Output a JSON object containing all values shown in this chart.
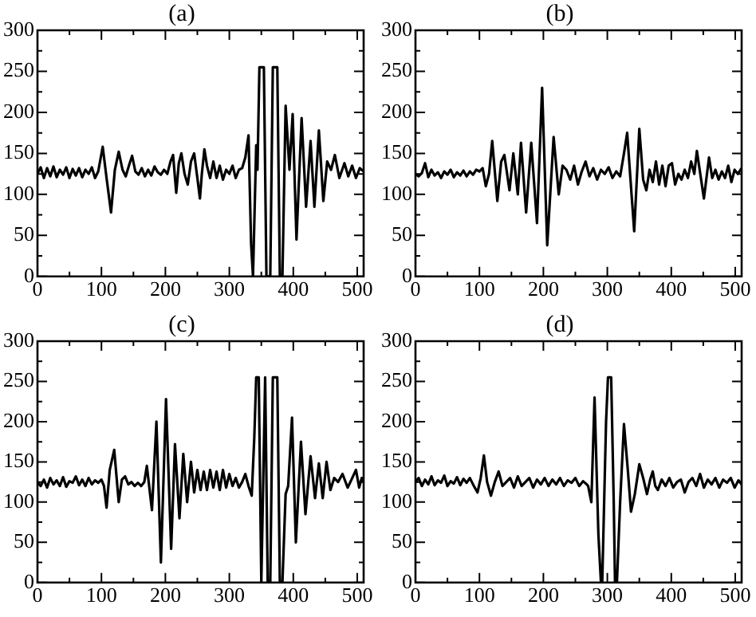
{
  "chart_data": [
    {
      "type": "line",
      "title": "(a)",
      "color": "#000000",
      "marker": "none",
      "xlim": [
        0,
        510
      ],
      "ylim": [
        0,
        300
      ],
      "xticks": [
        0,
        {
          "value": 50,
          "label": null
        },
        100,
        {
          "value": 150,
          "label": null
        },
        200,
        {
          "value": 250,
          "label": null
        },
        300,
        {
          "value": 350,
          "label": null
        },
        400,
        {
          "value": 450,
          "label": null
        },
        500
      ],
      "yticks": [
        0,
        {
          "value": 25,
          "label": null
        },
        50,
        {
          "value": 75,
          "label": null
        },
        100,
        {
          "value": 125,
          "label": null
        },
        150,
        {
          "value": 175,
          "label": null
        },
        200,
        {
          "value": 225,
          "label": null
        },
        250,
        {
          "value": 275,
          "label": null
        },
        300
      ],
      "x": [
        0,
        5,
        10,
        15,
        20,
        25,
        30,
        35,
        40,
        45,
        50,
        55,
        60,
        65,
        70,
        75,
        80,
        85,
        90,
        95,
        102,
        108,
        115,
        121,
        127,
        133,
        138,
        143,
        148,
        153,
        158,
        163,
        168,
        173,
        178,
        183,
        188,
        193,
        198,
        203,
        208,
        212,
        217,
        221,
        225,
        230,
        235,
        240,
        245,
        250,
        254,
        257,
        261,
        265,
        270,
        275,
        280,
        285,
        290,
        295,
        300,
        305,
        310,
        315,
        320,
        325,
        330,
        334,
        337,
        342,
        344,
        347,
        354,
        358,
        364,
        368,
        375,
        379,
        383,
        388,
        394,
        399,
        405,
        413,
        420,
        427,
        433,
        440,
        447,
        453,
        459,
        465,
        472,
        480,
        486,
        492,
        498,
        504,
        510
      ],
      "values": [
        125,
        133,
        120,
        132,
        122,
        134,
        121,
        130,
        124,
        133,
        120,
        131,
        123,
        132,
        121,
        130,
        125,
        133,
        120,
        128,
        158,
        120,
        78,
        130,
        152,
        130,
        122,
        135,
        147,
        128,
        124,
        132,
        122,
        130,
        123,
        134,
        127,
        124,
        130,
        125,
        140,
        148,
        102,
        138,
        150,
        125,
        112,
        140,
        150,
        120,
        95,
        125,
        155,
        135,
        120,
        140,
        120,
        135,
        118,
        130,
        125,
        135,
        120,
        130,
        132,
        145,
        172,
        40,
        0,
        160,
        130,
        255,
        255,
        0,
        0,
        255,
        255,
        0,
        0,
        208,
        130,
        198,
        45,
        193,
        85,
        165,
        85,
        178,
        92,
        140,
        130,
        148,
        120,
        138,
        122,
        135,
        120,
        132,
        128
      ]
    },
    {
      "type": "line",
      "title": "(b)",
      "color": "#000000",
      "marker": "none",
      "xlim": [
        0,
        510
      ],
      "ylim": [
        0,
        300
      ],
      "xticks": [
        0,
        {
          "value": 50,
          "label": null
        },
        100,
        {
          "value": 150,
          "label": null
        },
        200,
        {
          "value": 250,
          "label": null
        },
        300,
        {
          "value": 350,
          "label": null
        },
        400,
        {
          "value": 450,
          "label": null
        },
        500
      ],
      "yticks": [
        0,
        {
          "value": 25,
          "label": null
        },
        50,
        {
          "value": 75,
          "label": null
        },
        100,
        {
          "value": 125,
          "label": null
        },
        150,
        {
          "value": 175,
          "label": null
        },
        200,
        {
          "value": 225,
          "label": null
        },
        250,
        {
          "value": 275,
          "label": null
        },
        300
      ],
      "x": [
        0,
        5,
        10,
        15,
        20,
        25,
        30,
        35,
        40,
        45,
        50,
        55,
        60,
        65,
        70,
        75,
        80,
        85,
        90,
        95,
        100,
        105,
        110,
        115,
        120,
        128,
        134,
        139,
        147,
        153,
        160,
        165,
        173,
        181,
        190,
        198,
        206,
        216,
        224,
        230,
        236,
        242,
        248,
        254,
        260,
        266,
        272,
        278,
        284,
        290,
        296,
        302,
        308,
        314,
        320,
        326,
        331,
        342,
        350,
        356,
        361,
        366,
        371,
        376,
        381,
        386,
        391,
        396,
        401,
        406,
        411,
        416,
        421,
        426,
        431,
        436,
        440,
        451,
        459,
        464,
        469,
        474,
        479,
        484,
        489,
        494,
        499,
        504,
        510
      ],
      "values": [
        125,
        122,
        126,
        138,
        121,
        130,
        123,
        127,
        120,
        128,
        124,
        130,
        121,
        127,
        123,
        129,
        122,
        128,
        124,
        130,
        128,
        132,
        110,
        125,
        165,
        92,
        140,
        148,
        105,
        150,
        100,
        163,
        78,
        163,
        65,
        230,
        38,
        170,
        100,
        135,
        130,
        118,
        135,
        112,
        128,
        140,
        122,
        132,
        118,
        130,
        125,
        133,
        120,
        128,
        122,
        150,
        175,
        55,
        180,
        118,
        105,
        130,
        115,
        140,
        112,
        135,
        110,
        135,
        138,
        112,
        125,
        118,
        130,
        120,
        140,
        125,
        153,
        95,
        145,
        120,
        130,
        118,
        128,
        120,
        135,
        115,
        130,
        125,
        132
      ]
    },
    {
      "type": "line",
      "title": "(c)",
      "color": "#000000",
      "marker": "none",
      "xlim": [
        0,
        510
      ],
      "ylim": [
        0,
        300
      ],
      "xticks": [
        0,
        {
          "value": 50,
          "label": null
        },
        100,
        {
          "value": 150,
          "label": null
        },
        200,
        {
          "value": 250,
          "label": null
        },
        300,
        {
          "value": 350,
          "label": null
        },
        400,
        {
          "value": 450,
          "label": null
        },
        500
      ],
      "yticks": [
        0,
        {
          "value": 25,
          "label": null
        },
        50,
        {
          "value": 75,
          "label": null
        },
        100,
        {
          "value": 125,
          "label": null
        },
        150,
        {
          "value": 175,
          "label": null
        },
        200,
        {
          "value": 225,
          "label": null
        },
        250,
        {
          "value": 275,
          "label": null
        },
        300
      ],
      "x": [
        0,
        5,
        10,
        15,
        20,
        25,
        30,
        35,
        40,
        45,
        50,
        55,
        60,
        65,
        70,
        75,
        80,
        85,
        90,
        95,
        100,
        104,
        108,
        113,
        120,
        127,
        132,
        137,
        142,
        147,
        152,
        157,
        162,
        167,
        171,
        179,
        186,
        193,
        201,
        209,
        215,
        222,
        228,
        234,
        240,
        245,
        250,
        255,
        260,
        265,
        270,
        275,
        280,
        285,
        290,
        295,
        300,
        305,
        310,
        315,
        320,
        325,
        330,
        335,
        339,
        342,
        346,
        350,
        356,
        360,
        364,
        368,
        375,
        379,
        383,
        388,
        392,
        398,
        404,
        412,
        419,
        427,
        434,
        440,
        446,
        452,
        458,
        464,
        470,
        477,
        485,
        491,
        498,
        503,
        507,
        510
      ],
      "values": [
        125,
        120,
        128,
        118,
        130,
        122,
        127,
        120,
        131,
        119,
        126,
        124,
        132,
        121,
        128,
        120,
        130,
        122,
        127,
        124,
        128,
        120,
        93,
        140,
        165,
        100,
        128,
        132,
        122,
        125,
        120,
        124,
        120,
        125,
        145,
        90,
        200,
        25,
        228,
        42,
        172,
        80,
        160,
        100,
        150,
        112,
        140,
        115,
        138,
        115,
        140,
        118,
        138,
        115,
        140,
        118,
        135,
        120,
        130,
        118,
        125,
        135,
        120,
        108,
        180,
        255,
        255,
        0,
        255,
        0,
        0,
        255,
        255,
        0,
        0,
        110,
        120,
        205,
        50,
        175,
        85,
        157,
        105,
        148,
        105,
        150,
        115,
        130,
        125,
        135,
        118,
        128,
        140,
        118,
        130,
        125
      ]
    },
    {
      "type": "line",
      "title": "(d)",
      "color": "#000000",
      "marker": "none",
      "xlim": [
        0,
        510
      ],
      "ylim": [
        0,
        300
      ],
      "xticks": [
        0,
        {
          "value": 50,
          "label": null
        },
        100,
        {
          "value": 150,
          "label": null
        },
        200,
        {
          "value": 250,
          "label": null
        },
        300,
        {
          "value": 350,
          "label": null
        },
        400,
        {
          "value": 450,
          "label": null
        },
        500
      ],
      "yticks": [
        0,
        {
          "value": 25,
          "label": null
        },
        50,
        {
          "value": 75,
          "label": null
        },
        100,
        {
          "value": 125,
          "label": null
        },
        150,
        {
          "value": 175,
          "label": null
        },
        200,
        {
          "value": 225,
          "label": null
        },
        250,
        {
          "value": 275,
          "label": null
        },
        300
      ],
      "x": [
        0,
        5,
        10,
        15,
        20,
        25,
        30,
        35,
        40,
        45,
        50,
        55,
        60,
        65,
        70,
        75,
        80,
        85,
        90,
        97,
        102,
        107,
        112,
        118,
        124,
        130,
        136,
        142,
        148,
        154,
        160,
        166,
        172,
        178,
        184,
        190,
        196,
        202,
        208,
        214,
        220,
        226,
        232,
        238,
        244,
        250,
        256,
        262,
        268,
        270,
        275,
        280,
        286,
        290,
        292,
        298,
        301,
        306,
        310,
        312,
        315,
        320,
        326,
        332,
        337,
        343,
        350,
        356,
        362,
        367,
        371,
        375,
        379,
        385,
        391,
        397,
        403,
        409,
        415,
        421,
        427,
        433,
        439,
        445,
        451,
        457,
        463,
        469,
        475,
        481,
        487,
        493,
        499,
        505,
        510
      ],
      "values": [
        125,
        130,
        120,
        128,
        122,
        132,
        121,
        127,
        124,
        133,
        120,
        126,
        123,
        131,
        121,
        129,
        124,
        130,
        122,
        112,
        130,
        158,
        125,
        108,
        125,
        138,
        120,
        125,
        130,
        118,
        132,
        120,
        125,
        130,
        118,
        128,
        122,
        130,
        120,
        128,
        122,
        130,
        120,
        127,
        124,
        130,
        120,
        126,
        122,
        120,
        100,
        230,
        60,
        0,
        0,
        200,
        255,
        255,
        100,
        0,
        0,
        100,
        197,
        140,
        88,
        110,
        147,
        130,
        110,
        128,
        138,
        120,
        115,
        128,
        120,
        130,
        118,
        125,
        128,
        112,
        125,
        130,
        120,
        135,
        118,
        128,
        122,
        130,
        118,
        128,
        124,
        130,
        118,
        127,
        122
      ]
    }
  ]
}
